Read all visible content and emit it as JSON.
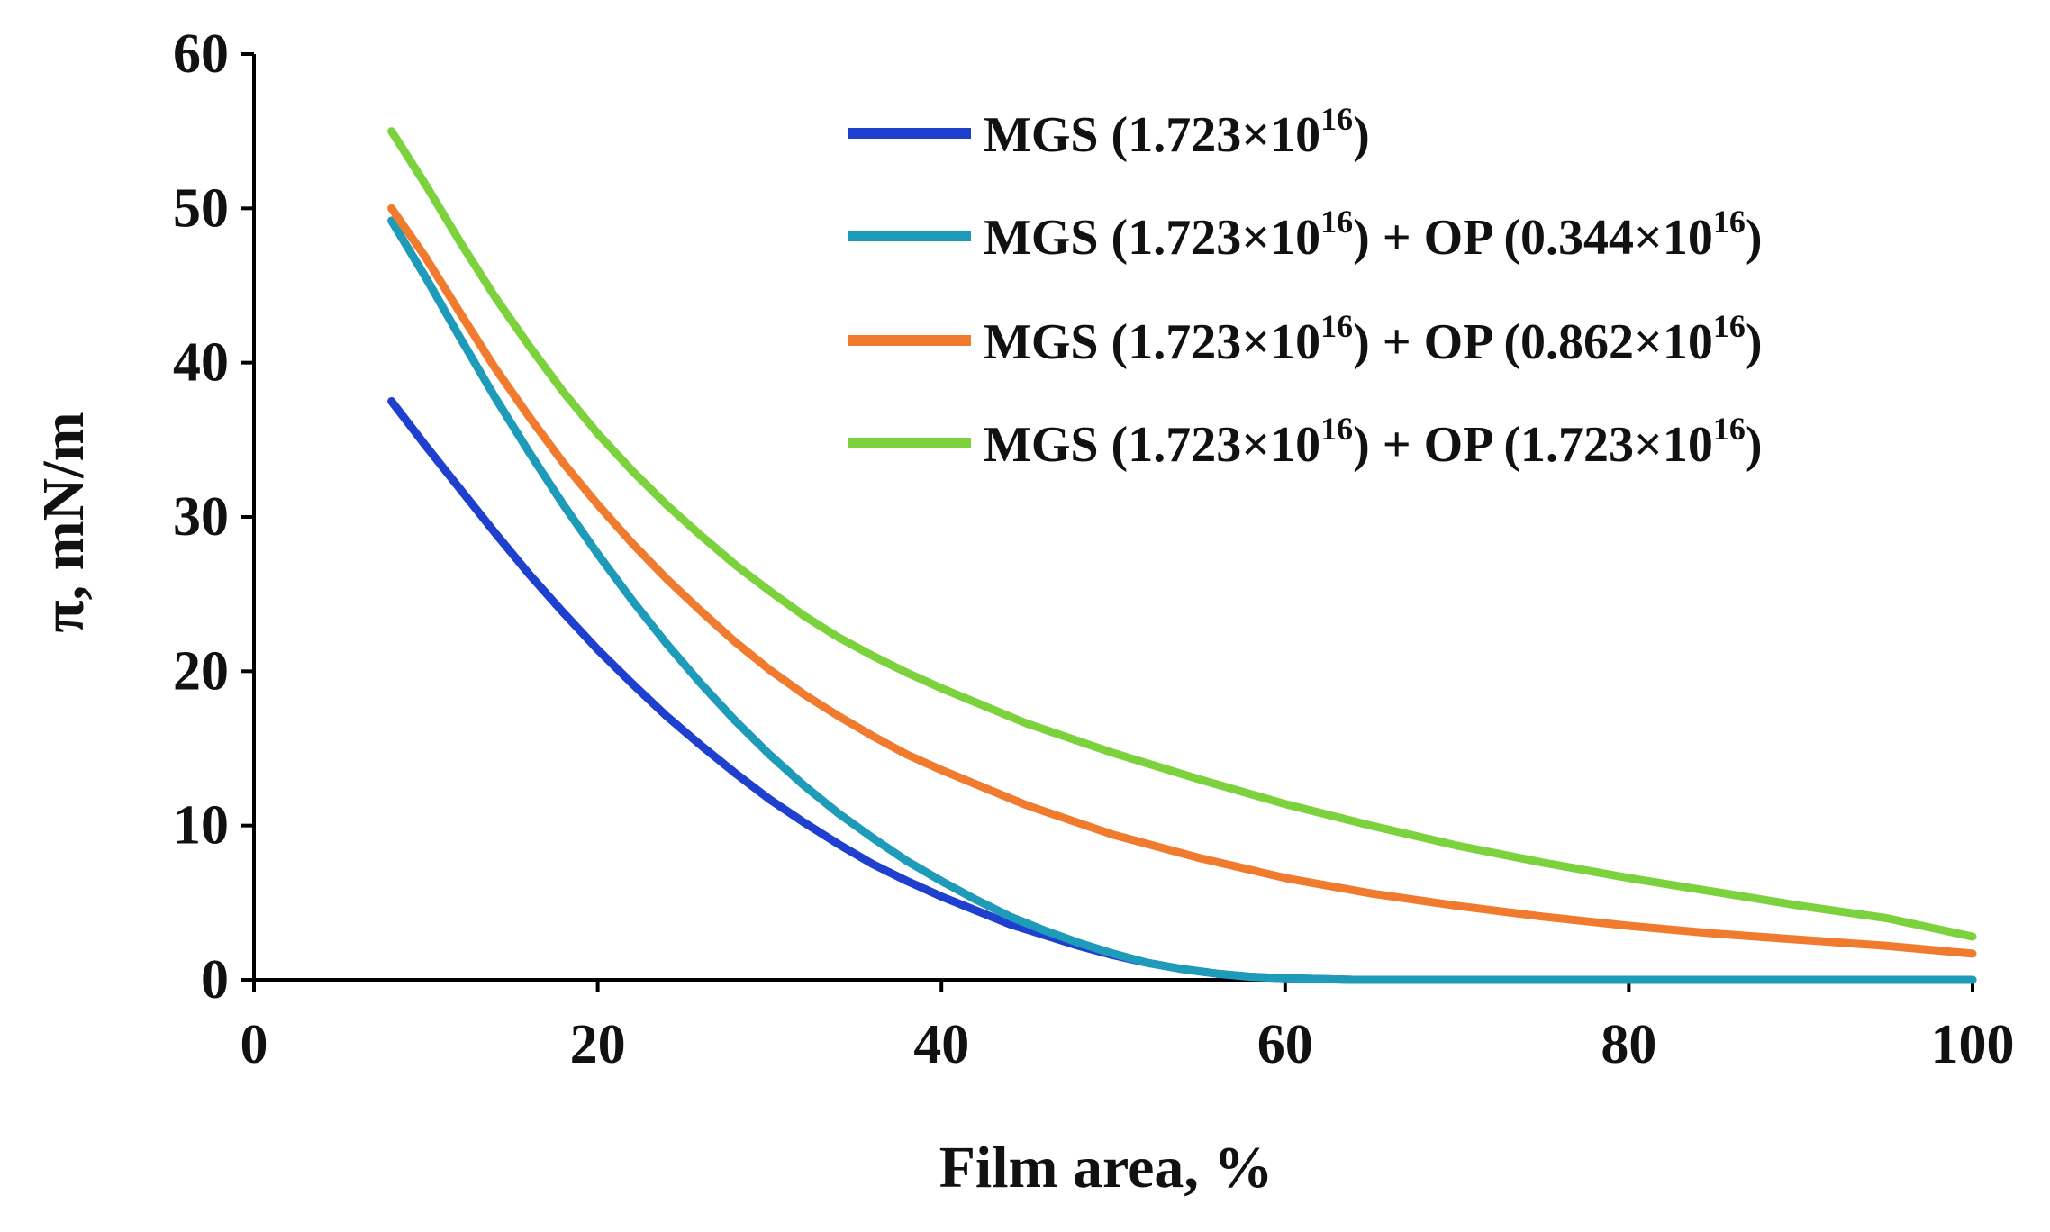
{
  "chart_data": {
    "type": "line",
    "title": "",
    "xlabel": "Film area, %",
    "ylabel": "π, mN/m",
    "xlim": [
      0,
      100
    ],
    "ylim": [
      0,
      60
    ],
    "x_ticks": [
      0,
      20,
      40,
      60,
      80,
      100
    ],
    "y_ticks": [
      0,
      10,
      20,
      30,
      40,
      50,
      60
    ],
    "grid": false,
    "legend_position": "top-right",
    "series": [
      {
        "name": "MGS (1.723×10^16)",
        "legend": {
          "base": "MGS (1.723×10",
          "sup1": "16",
          "tail1": ")",
          "sup2": "",
          "tail2": ""
        },
        "color": "#1f3fcf",
        "x": [
          8,
          10,
          12,
          14,
          16,
          18,
          20,
          22,
          24,
          26,
          28,
          30,
          32,
          34,
          36,
          38,
          40,
          42,
          44,
          46,
          48,
          50,
          52,
          54,
          56,
          58,
          60,
          62,
          64,
          66,
          70,
          75,
          80,
          85,
          90,
          95,
          100
        ],
        "y": [
          37.5,
          34.6,
          31.8,
          29.0,
          26.3,
          23.8,
          21.4,
          19.2,
          17.1,
          15.2,
          13.4,
          11.7,
          10.2,
          8.8,
          7.5,
          6.4,
          5.4,
          4.5,
          3.6,
          2.9,
          2.2,
          1.6,
          1.1,
          0.7,
          0.4,
          0.2,
          0.1,
          0.05,
          0.0,
          0.0,
          0.0,
          0.0,
          0.0,
          0.0,
          0.0,
          0.0,
          0.0
        ]
      },
      {
        "name": "MGS (1.723×10^16) + OP (0.344×10^16)",
        "legend": {
          "base": "MGS (1.723×10",
          "sup1": "16",
          "tail1": ") + OP (0.344×10",
          "sup2": "16",
          "tail2": ")"
        },
        "color": "#1e9bb8",
        "x": [
          8,
          10,
          12,
          14,
          16,
          18,
          20,
          22,
          24,
          26,
          28,
          30,
          32,
          34,
          36,
          38,
          40,
          42,
          44,
          46,
          48,
          50,
          52,
          54,
          56,
          58,
          60,
          62,
          64,
          66,
          70,
          75,
          80,
          85,
          90,
          95,
          100
        ],
        "y": [
          49.2,
          45.5,
          41.6,
          37.8,
          34.2,
          30.8,
          27.6,
          24.6,
          21.8,
          19.2,
          16.8,
          14.6,
          12.6,
          10.8,
          9.2,
          7.7,
          6.4,
          5.2,
          4.1,
          3.2,
          2.4,
          1.7,
          1.1,
          0.7,
          0.4,
          0.2,
          0.1,
          0.05,
          0.0,
          0.0,
          0.0,
          0.0,
          0.0,
          0.0,
          0.0,
          0.0,
          0.0
        ]
      },
      {
        "name": "MGS (1.723×10^16) + OP (0.862×10^16)",
        "legend": {
          "base": "MGS (1.723×10",
          "sup1": "16",
          "tail1": ") + OP (0.862×10",
          "sup2": "16",
          "tail2": ")"
        },
        "color": "#f07b2e",
        "x": [
          8,
          10,
          12,
          14,
          16,
          18,
          20,
          22,
          24,
          26,
          28,
          30,
          32,
          34,
          36,
          38,
          40,
          45,
          50,
          55,
          60,
          65,
          70,
          75,
          80,
          85,
          90,
          95,
          100
        ],
        "y": [
          50.0,
          46.8,
          43.2,
          39.7,
          36.5,
          33.5,
          30.8,
          28.3,
          26.0,
          23.9,
          21.9,
          20.1,
          18.5,
          17.1,
          15.8,
          14.6,
          13.6,
          11.3,
          9.4,
          7.9,
          6.6,
          5.6,
          4.8,
          4.1,
          3.5,
          3.0,
          2.6,
          2.2,
          1.7
        ]
      },
      {
        "name": "MGS (1.723×10^16) + OP (1.723×10^16)",
        "legend": {
          "base": "MGS (1.723×10",
          "sup1": "16",
          "tail1": ") + OP (1.723×10",
          "sup2": "16",
          "tail2": ")"
        },
        "color": "#7bd23c",
        "x": [
          8,
          10,
          12,
          14,
          16,
          18,
          20,
          22,
          24,
          26,
          28,
          30,
          32,
          34,
          36,
          38,
          40,
          45,
          50,
          55,
          60,
          65,
          70,
          75,
          80,
          85,
          90,
          95,
          100
        ],
        "y": [
          55.0,
          51.5,
          47.8,
          44.3,
          41.1,
          38.1,
          35.4,
          33.0,
          30.8,
          28.8,
          26.9,
          25.2,
          23.6,
          22.2,
          21.0,
          19.9,
          18.9,
          16.6,
          14.7,
          13.0,
          11.4,
          10.0,
          8.7,
          7.6,
          6.6,
          5.7,
          4.8,
          4.0,
          2.8
        ]
      }
    ]
  }
}
